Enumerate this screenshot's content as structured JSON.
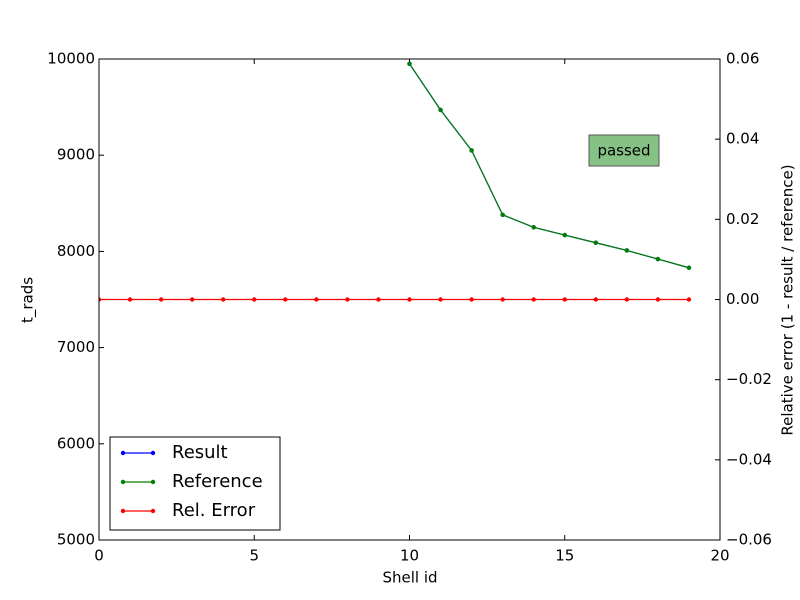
{
  "chart_data": {
    "type": "line",
    "xlabel": "Shell id",
    "ylabel": "t_rads",
    "y2label": "Relative error (1 - result / reference)",
    "x": [
      0,
      1,
      2,
      3,
      4,
      5,
      6,
      7,
      8,
      9,
      10,
      11,
      12,
      13,
      14,
      15,
      16,
      17,
      18,
      19
    ],
    "series": [
      {
        "name": "Result",
        "color": "#0000ff",
        "values": [
          null,
          null,
          null,
          null,
          null,
          null,
          null,
          null,
          null,
          null,
          9950,
          9470,
          9050,
          8380,
          8250,
          8170,
          8090,
          8010,
          7920,
          7830
        ]
      },
      {
        "name": "Reference",
        "color": "#008000",
        "values": [
          null,
          null,
          null,
          null,
          null,
          null,
          null,
          null,
          null,
          null,
          9950,
          9470,
          9050,
          8380,
          8250,
          8170,
          8090,
          8010,
          7920,
          7830
        ]
      },
      {
        "name": "Rel. Error",
        "color": "#ff0000",
        "axis": "y2",
        "values": [
          0,
          0,
          0,
          0,
          0,
          0,
          0,
          0,
          0,
          0,
          0,
          0,
          0,
          0,
          0,
          0,
          0,
          0,
          0,
          0
        ]
      }
    ],
    "xlim": [
      0,
      20
    ],
    "xticks": [
      0,
      5,
      10,
      15,
      20
    ],
    "ylim": [
      5000,
      10000
    ],
    "yticks": [
      5000,
      6000,
      7000,
      8000,
      9000,
      10000
    ],
    "y2lim": [
      -0.06,
      0.06
    ],
    "y2ticks": [
      {
        "value": -0.06,
        "label": "−0.06"
      },
      {
        "value": -0.04,
        "label": "−0.04"
      },
      {
        "value": -0.02,
        "label": "−0.02"
      },
      {
        "value": 0,
        "label": "0.00"
      },
      0.02,
      0.04,
      0.06
    ],
    "annotation": "passed",
    "annotation_color": "#7fbf7f",
    "legend": "lower left"
  }
}
